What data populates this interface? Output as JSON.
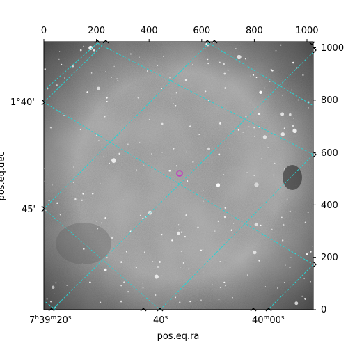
{
  "figure": {
    "xlabel": "pos.eq.ra",
    "ylabel": "pos.eq.dec",
    "top_ticks": [
      "0",
      "200",
      "400",
      "600",
      "800",
      "1000"
    ],
    "right_ticks": [
      "0",
      "200",
      "400",
      "600",
      "800",
      "1000"
    ],
    "ra_ticks": [
      {
        "h": "7",
        "m": "39",
        "s": "20",
        "full": true
      },
      {
        "s": "40",
        "full": false
      },
      {
        "m": "40",
        "s": "00",
        "mid": true
      }
    ],
    "dec_ticks": [
      "1°40'",
      "45'"
    ],
    "colors": {
      "grid": "#27d3d3",
      "marker": "#c040c0"
    }
  }
}
